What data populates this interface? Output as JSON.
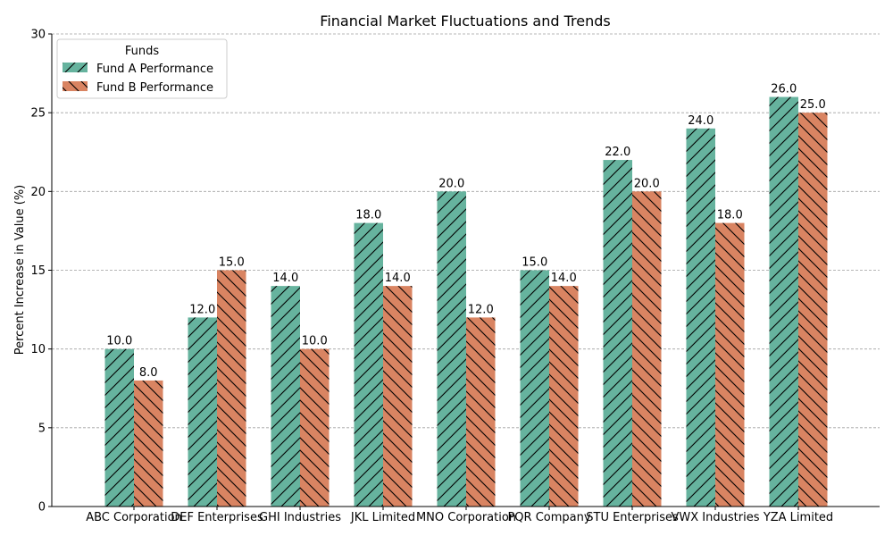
{
  "chart_data": {
    "type": "bar",
    "title": "Financial Market Fluctuations and Trends",
    "xlabel": "",
    "ylabel": "Percent Increase in Value (%)",
    "ylim": [
      0,
      30
    ],
    "yticks": [
      0,
      5,
      10,
      15,
      20,
      25,
      30
    ],
    "grid": "y-dashed",
    "legend": {
      "title": "Funds",
      "placement": "top-left"
    },
    "categories": [
      "ABC Corporation",
      "DEF Enterprises",
      "GHI Industries",
      "JKL Limited",
      "MNO Corporation",
      "PQR Company",
      "STU Enterprises",
      "VWX Industries",
      "YZA Limited"
    ],
    "series": [
      {
        "name": "Fund A Performance",
        "color": "#66b39e",
        "hatch": "forward-slash",
        "values": [
          10.0,
          12.0,
          14.0,
          18.0,
          20.0,
          15.0,
          22.0,
          24.0,
          26.0
        ],
        "labels": [
          "10.0",
          "12.0",
          "14.0",
          "18.0",
          "20.0",
          "15.0",
          "22.0",
          "24.0",
          "26.0"
        ]
      },
      {
        "name": "Fund B Performance",
        "color": "#d98462",
        "hatch": "back-slash",
        "values": [
          8.0,
          15.0,
          10.0,
          14.0,
          12.0,
          14.0,
          20.0,
          18.0,
          25.0
        ],
        "labels": [
          "8.0",
          "15.0",
          "10.0",
          "14.0",
          "12.0",
          "14.0",
          "20.0",
          "18.0",
          "25.0"
        ]
      }
    ]
  }
}
